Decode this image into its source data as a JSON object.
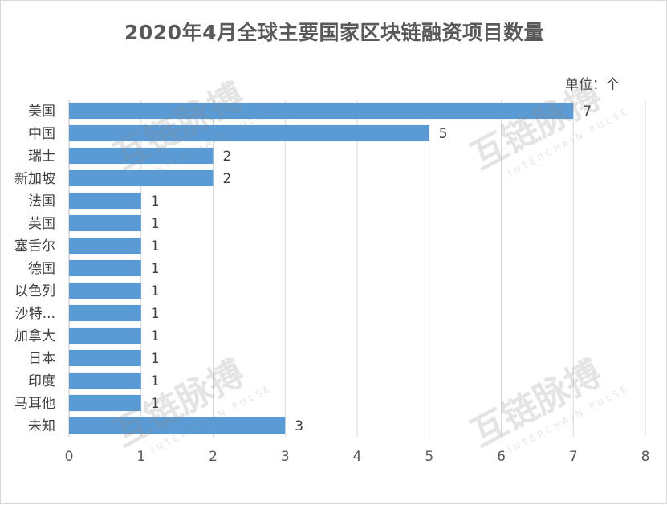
{
  "chart_data": {
    "type": "bar",
    "orientation": "horizontal",
    "title": "2020年4月全球主要国家区块链融资项目数量",
    "unit_label": "单位：个",
    "categories": [
      "美国",
      "中国",
      "瑞士",
      "新加坡",
      "法国",
      "英国",
      "塞舌尔",
      "德国",
      "以色列",
      "沙特...",
      "加拿大",
      "日本",
      "印度",
      "马耳他",
      "未知"
    ],
    "values": [
      7,
      5,
      2,
      2,
      1,
      1,
      1,
      1,
      1,
      1,
      1,
      1,
      1,
      1,
      3
    ],
    "xlim": [
      0,
      8
    ],
    "x_ticks": [
      "0",
      "1",
      "2",
      "3",
      "4",
      "5",
      "6",
      "7",
      "8"
    ],
    "grid": "vertical",
    "bar_color": "#5b9bd5",
    "data_labels": true
  },
  "watermark": {
    "logo_text": "互链脉搏",
    "logo_sub": "INTERCHAIN PULSE"
  }
}
